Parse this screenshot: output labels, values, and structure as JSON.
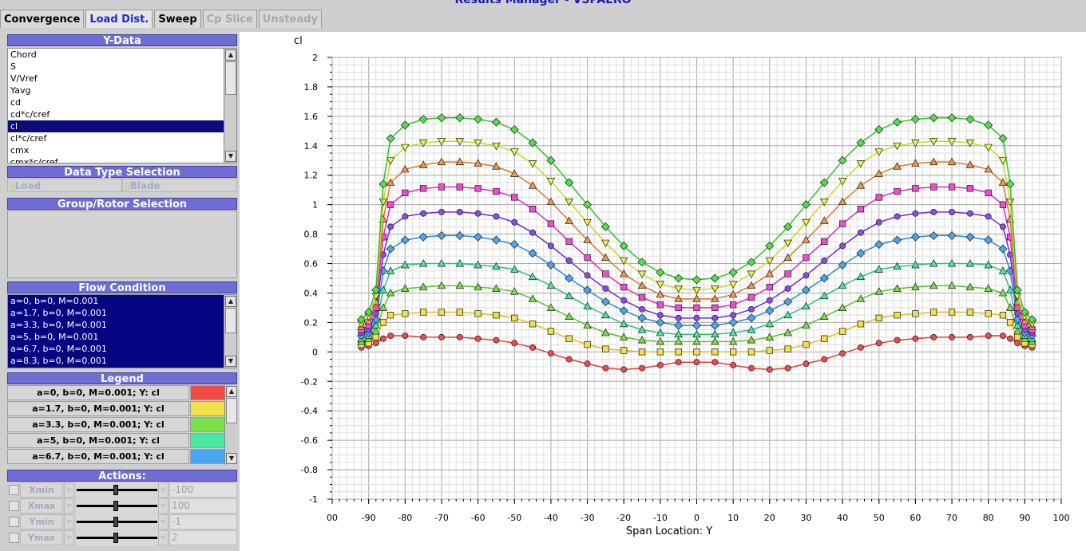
{
  "window": {
    "title": "Results Manager - VSPAERO"
  },
  "tabs": [
    {
      "label": "Convergence",
      "state": "normal"
    },
    {
      "label": "Load Dist.",
      "state": "active"
    },
    {
      "label": "Sweep",
      "state": "normal"
    },
    {
      "label": "Cp Slice",
      "state": "disabled"
    },
    {
      "label": "Unsteady",
      "state": "disabled"
    }
  ],
  "ydata": {
    "header": "Y-Data",
    "items": [
      "Chord",
      "S",
      "V/Vref",
      "Yavg",
      "cd",
      "cd*c/cref",
      "cl",
      "cl*c/cref",
      "cmx",
      "cmx*c/cref"
    ],
    "selected": "cl"
  },
  "data_type": {
    "header": "Data Type Selection",
    "load_label": "Load",
    "blade_label": "Blade"
  },
  "group_rotor": {
    "header": "Group/Rotor Selection"
  },
  "flow_condition": {
    "header": "Flow Condition",
    "items": [
      "a=0, b=0, M=0.001",
      "a=1.7, b=0, M=0.001",
      "a=3.3, b=0, M=0.001",
      "a=5, b=0, M=0.001",
      "a=6.7, b=0, M=0.001",
      "a=8.3, b=0, M=0.001"
    ]
  },
  "legend": {
    "header": "Legend",
    "items": [
      {
        "label": "a=0, b=0, M=0.001; Y: cl",
        "color": "#f44a4a"
      },
      {
        "label": "a=1.7, b=0, M=0.001; Y: cl",
        "color": "#f2df4a"
      },
      {
        "label": "a=3.3, b=0, M=0.001; Y: cl",
        "color": "#7ae04a"
      },
      {
        "label": "a=5, b=0, M=0.001; Y: cl",
        "color": "#4ae8a0"
      },
      {
        "label": "a=6.7, b=0, M=0.001; Y: cl",
        "color": "#4aa6f2"
      }
    ]
  },
  "actions": {
    "header": "Actions:",
    "rows": [
      {
        "label": "Xmin",
        "value": "-100"
      },
      {
        "label": "Xmax",
        "value": "100"
      },
      {
        "label": "Ymin",
        "value": "-1"
      },
      {
        "label": "Ymax",
        "value": "2"
      }
    ],
    "dec_symbol": ">",
    "inc_symbol": "<"
  },
  "chart_data": {
    "type": "line",
    "xlabel": "Span Location: Y",
    "ylabel": "cl",
    "xlim": [
      -100,
      100
    ],
    "ylim": [
      -1,
      2
    ],
    "x_ticks": [
      "00",
      "-90",
      "-80",
      "-70",
      "-60",
      "-50",
      "-40",
      "-30",
      "-20",
      "-10",
      "0",
      "10",
      "20",
      "30",
      "40",
      "50",
      "60",
      "70",
      "80",
      "90",
      "100"
    ],
    "y_ticks": [
      "2",
      "1.8",
      "1.6",
      "1.4",
      "1.2",
      "1",
      "0.8",
      "0.6",
      "0.4",
      "0.2",
      "0",
      "-0.2",
      "-0.4",
      "-0.6",
      "-0.8",
      "-1"
    ],
    "grid": true,
    "x": [
      -92,
      -90,
      -88,
      -86,
      -84,
      -80,
      -75,
      -70,
      -65,
      -60,
      -55,
      -50,
      -45,
      -40,
      -35,
      -30,
      -25,
      -20,
      -15,
      -10,
      -5,
      0,
      5,
      10,
      15,
      20,
      25,
      30,
      35,
      40,
      45,
      50,
      55,
      60,
      65,
      70,
      75,
      80,
      84,
      86,
      88,
      90,
      92
    ],
    "series": [
      {
        "color": "#f44a4a",
        "line": "#e33d3d",
        "marker": "circle",
        "values": [
          0.03,
          0.04,
          0.06,
          0.09,
          0.11,
          0.11,
          0.1,
          0.1,
          0.1,
          0.09,
          0.08,
          0.06,
          0.03,
          -0.01,
          -0.05,
          -0.08,
          -0.11,
          -0.12,
          -0.11,
          -0.09,
          -0.07,
          -0.07,
          -0.07,
          -0.09,
          -0.11,
          -0.12,
          -0.11,
          -0.08,
          -0.05,
          -0.01,
          0.03,
          0.06,
          0.08,
          0.09,
          0.1,
          0.1,
          0.1,
          0.11,
          0.11,
          0.09,
          0.06,
          0.04,
          0.03
        ]
      },
      {
        "color": "#f2df4a",
        "line": "#d8c020",
        "marker": "square",
        "values": [
          0.05,
          0.06,
          0.1,
          0.2,
          0.25,
          0.26,
          0.27,
          0.27,
          0.27,
          0.26,
          0.25,
          0.23,
          0.19,
          0.14,
          0.09,
          0.05,
          0.02,
          0.01,
          0.0,
          0.0,
          0.0,
          0.0,
          0.0,
          0.0,
          0.0,
          0.01,
          0.02,
          0.05,
          0.09,
          0.14,
          0.19,
          0.23,
          0.25,
          0.26,
          0.27,
          0.27,
          0.27,
          0.26,
          0.25,
          0.2,
          0.1,
          0.06,
          0.05
        ]
      },
      {
        "color": "#7ae04a",
        "line": "#5cc02c",
        "marker": "triangle-up",
        "values": [
          0.07,
          0.09,
          0.14,
          0.3,
          0.4,
          0.43,
          0.44,
          0.45,
          0.45,
          0.44,
          0.43,
          0.41,
          0.36,
          0.3,
          0.24,
          0.18,
          0.13,
          0.1,
          0.08,
          0.07,
          0.07,
          0.07,
          0.07,
          0.07,
          0.08,
          0.1,
          0.13,
          0.18,
          0.24,
          0.3,
          0.36,
          0.41,
          0.43,
          0.44,
          0.45,
          0.45,
          0.44,
          0.43,
          0.4,
          0.3,
          0.14,
          0.09,
          0.07
        ]
      },
      {
        "color": "#4ae8a0",
        "line": "#2cc07c",
        "marker": "triangle-up",
        "values": [
          0.09,
          0.11,
          0.18,
          0.42,
          0.55,
          0.59,
          0.6,
          0.6,
          0.6,
          0.59,
          0.58,
          0.56,
          0.51,
          0.45,
          0.38,
          0.31,
          0.25,
          0.19,
          0.15,
          0.13,
          0.12,
          0.12,
          0.12,
          0.13,
          0.15,
          0.19,
          0.25,
          0.31,
          0.38,
          0.45,
          0.51,
          0.56,
          0.58,
          0.59,
          0.6,
          0.6,
          0.6,
          0.59,
          0.55,
          0.42,
          0.18,
          0.11,
          0.09
        ]
      },
      {
        "color": "#4aa6f2",
        "line": "#2c88d8",
        "marker": "diamond",
        "values": [
          0.11,
          0.13,
          0.22,
          0.55,
          0.7,
          0.76,
          0.78,
          0.79,
          0.79,
          0.78,
          0.76,
          0.73,
          0.67,
          0.59,
          0.5,
          0.42,
          0.34,
          0.28,
          0.23,
          0.2,
          0.18,
          0.18,
          0.18,
          0.2,
          0.23,
          0.28,
          0.34,
          0.42,
          0.5,
          0.59,
          0.67,
          0.73,
          0.76,
          0.78,
          0.79,
          0.79,
          0.78,
          0.76,
          0.7,
          0.55,
          0.22,
          0.13,
          0.11
        ]
      },
      {
        "color": "#8a4af2",
        "line": "#6c2cd8",
        "marker": "circle",
        "values": [
          0.13,
          0.15,
          0.26,
          0.66,
          0.85,
          0.92,
          0.94,
          0.95,
          0.95,
          0.94,
          0.92,
          0.88,
          0.81,
          0.72,
          0.62,
          0.52,
          0.43,
          0.35,
          0.29,
          0.25,
          0.23,
          0.23,
          0.23,
          0.25,
          0.29,
          0.35,
          0.43,
          0.52,
          0.62,
          0.72,
          0.81,
          0.88,
          0.92,
          0.94,
          0.95,
          0.95,
          0.94,
          0.92,
          0.85,
          0.66,
          0.26,
          0.15,
          0.13
        ]
      },
      {
        "color": "#f24ad6",
        "line": "#d82cb8",
        "marker": "square",
        "values": [
          0.15,
          0.18,
          0.3,
          0.78,
          1.0,
          1.08,
          1.11,
          1.12,
          1.12,
          1.11,
          1.09,
          1.05,
          0.97,
          0.87,
          0.75,
          0.64,
          0.53,
          0.44,
          0.37,
          0.32,
          0.3,
          0.3,
          0.3,
          0.32,
          0.37,
          0.44,
          0.53,
          0.64,
          0.75,
          0.87,
          0.97,
          1.05,
          1.09,
          1.11,
          1.12,
          1.12,
          1.11,
          1.08,
          1.0,
          0.78,
          0.3,
          0.18,
          0.15
        ]
      },
      {
        "color": "#f2964a",
        "line": "#d8782c",
        "marker": "triangle-up",
        "values": [
          0.17,
          0.21,
          0.34,
          0.9,
          1.15,
          1.24,
          1.27,
          1.29,
          1.29,
          1.28,
          1.26,
          1.21,
          1.13,
          1.02,
          0.89,
          0.76,
          0.64,
          0.53,
          0.45,
          0.39,
          0.36,
          0.36,
          0.36,
          0.39,
          0.45,
          0.53,
          0.64,
          0.76,
          0.89,
          1.02,
          1.13,
          1.21,
          1.26,
          1.28,
          1.29,
          1.29,
          1.27,
          1.24,
          1.15,
          0.9,
          0.34,
          0.21,
          0.17
        ]
      },
      {
        "color": "#eaf24a",
        "line": "#c8d82c",
        "marker": "triangle-down",
        "values": [
          0.19,
          0.24,
          0.38,
          1.02,
          1.3,
          1.39,
          1.42,
          1.43,
          1.43,
          1.42,
          1.4,
          1.36,
          1.28,
          1.16,
          1.02,
          0.88,
          0.74,
          0.62,
          0.53,
          0.46,
          0.43,
          0.42,
          0.43,
          0.46,
          0.53,
          0.62,
          0.74,
          0.88,
          1.02,
          1.16,
          1.28,
          1.36,
          1.4,
          1.42,
          1.43,
          1.43,
          1.42,
          1.39,
          1.3,
          1.02,
          0.38,
          0.24,
          0.19
        ]
      },
      {
        "color": "#52e04a",
        "line": "#36c02c",
        "marker": "diamond",
        "values": [
          0.22,
          0.27,
          0.42,
          1.14,
          1.45,
          1.54,
          1.58,
          1.59,
          1.59,
          1.58,
          1.56,
          1.51,
          1.42,
          1.3,
          1.15,
          1.0,
          0.85,
          0.72,
          0.61,
          0.54,
          0.5,
          0.49,
          0.5,
          0.54,
          0.61,
          0.72,
          0.85,
          1.0,
          1.15,
          1.3,
          1.42,
          1.51,
          1.56,
          1.58,
          1.59,
          1.59,
          1.58,
          1.54,
          1.45,
          1.14,
          0.42,
          0.27,
          0.22
        ]
      }
    ]
  }
}
